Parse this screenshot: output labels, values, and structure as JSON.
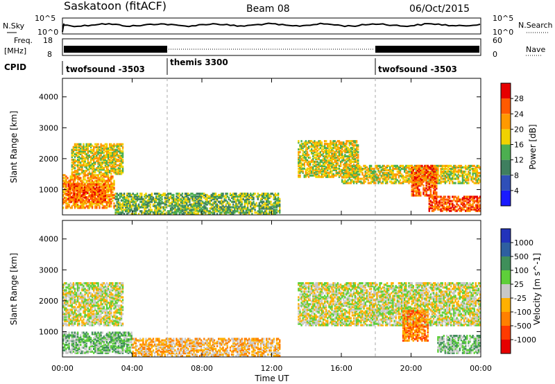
{
  "header": {
    "title": "Saskatoon (fitACF)",
    "beam": "Beam 08",
    "date": "06/Oct/2015"
  },
  "nsky_panel": {
    "left_label": "N.Sky",
    "left_ticks": [
      "10^5",
      "10^0"
    ],
    "right_label": "N.Search",
    "right_ticks": [
      "10^5",
      "10^0"
    ]
  },
  "freq_panel": {
    "left_label_line1": "Freq.",
    "left_label_line2": "[MHz]",
    "left_ticks": [
      "18",
      "8"
    ],
    "right_label": "Nave",
    "right_ticks": [
      "60",
      "0"
    ]
  },
  "cpid": {
    "label": "CPID",
    "segments": [
      {
        "label": "twofsound -3503",
        "start_hour": 0,
        "end_hour": 6
      },
      {
        "label": "themis 3300",
        "start_hour": 6,
        "end_hour": 18
      },
      {
        "label": "twofsound -3503",
        "start_hour": 18,
        "end_hour": 24
      }
    ]
  },
  "chart_data": [
    {
      "type": "heatmap",
      "name": "power",
      "ylabel": "Slant Range [km]",
      "yticks": [
        "1000",
        "2000",
        "3000",
        "4000"
      ],
      "ylim": [
        180,
        4600
      ],
      "xlim": [
        0,
        24
      ],
      "colorbar_label": "Power [dB]",
      "colorbar_ticks": [
        "4",
        "8",
        "12",
        "16",
        "20",
        "24",
        "28"
      ],
      "colorbar_colors": [
        "#1a1aff",
        "#2f4fb8",
        "#3f7f5f",
        "#4caf50",
        "#f0d200",
        "#ff9900",
        "#ff5a00",
        "#e60000"
      ],
      "regions": [
        {
          "t0": 0.0,
          "t1": 3.0,
          "r0": 400,
          "r1": 1500,
          "level": 5
        },
        {
          "t0": 0.5,
          "t1": 3.5,
          "r0": 1500,
          "r1": 2500,
          "level": 4
        },
        {
          "t0": 0.3,
          "t1": 2.5,
          "r0": 600,
          "r1": 1200,
          "level": 6
        },
        {
          "t0": 3.0,
          "t1": 12.5,
          "r0": 200,
          "r1": 900,
          "level": 3
        },
        {
          "t0": 13.5,
          "t1": 17.0,
          "r0": 1400,
          "r1": 2600,
          "level": 4
        },
        {
          "t0": 16.0,
          "t1": 24.0,
          "r0": 1200,
          "r1": 1800,
          "level": 4
        },
        {
          "t0": 20.0,
          "t1": 21.5,
          "r0": 800,
          "r1": 1800,
          "level": 6
        },
        {
          "t0": 21.0,
          "t1": 24.0,
          "r0": 300,
          "r1": 800,
          "level": 6
        }
      ]
    },
    {
      "type": "heatmap",
      "name": "velocity",
      "ylabel": "Slant Range [km]",
      "yticks": [
        "1000",
        "2000",
        "3000",
        "4000"
      ],
      "ylim": [
        180,
        4600
      ],
      "xlim": [
        0,
        24
      ],
      "xlabel": "Time UT",
      "xticks": [
        "00:00",
        "04:00",
        "08:00",
        "12:00",
        "16:00",
        "20:00",
        "00:00"
      ],
      "colorbar_label": "Velocity [m s^-1]",
      "colorbar_ticks": [
        "1000",
        "500",
        "100",
        "25",
        "-25",
        "-100",
        "-500",
        "-1000"
      ],
      "colorbar_colors": [
        "#2233bb",
        "#2e5fa0",
        "#3f8f5a",
        "#5ecf3a",
        "#c8c8c8",
        "#ffb000",
        "#ff8000",
        "#ff3a00",
        "#e60000"
      ],
      "regions": [
        {
          "t0": 0.0,
          "t1": 3.5,
          "r0": 1200,
          "r1": 2600,
          "level": 4
        },
        {
          "t0": 0.0,
          "t1": 4.0,
          "r0": 300,
          "r1": 1000,
          "level": 3
        },
        {
          "t0": 4.0,
          "t1": 12.5,
          "r0": 200,
          "r1": 800,
          "level": 5
        },
        {
          "t0": 13.5,
          "t1": 24.0,
          "r0": 1200,
          "r1": 2600,
          "level": 4
        },
        {
          "t0": 19.5,
          "t1": 21.0,
          "r0": 700,
          "r1": 1700,
          "level": 6
        },
        {
          "t0": 21.5,
          "t1": 24.0,
          "r0": 300,
          "r1": 900,
          "level": 3
        }
      ]
    }
  ]
}
